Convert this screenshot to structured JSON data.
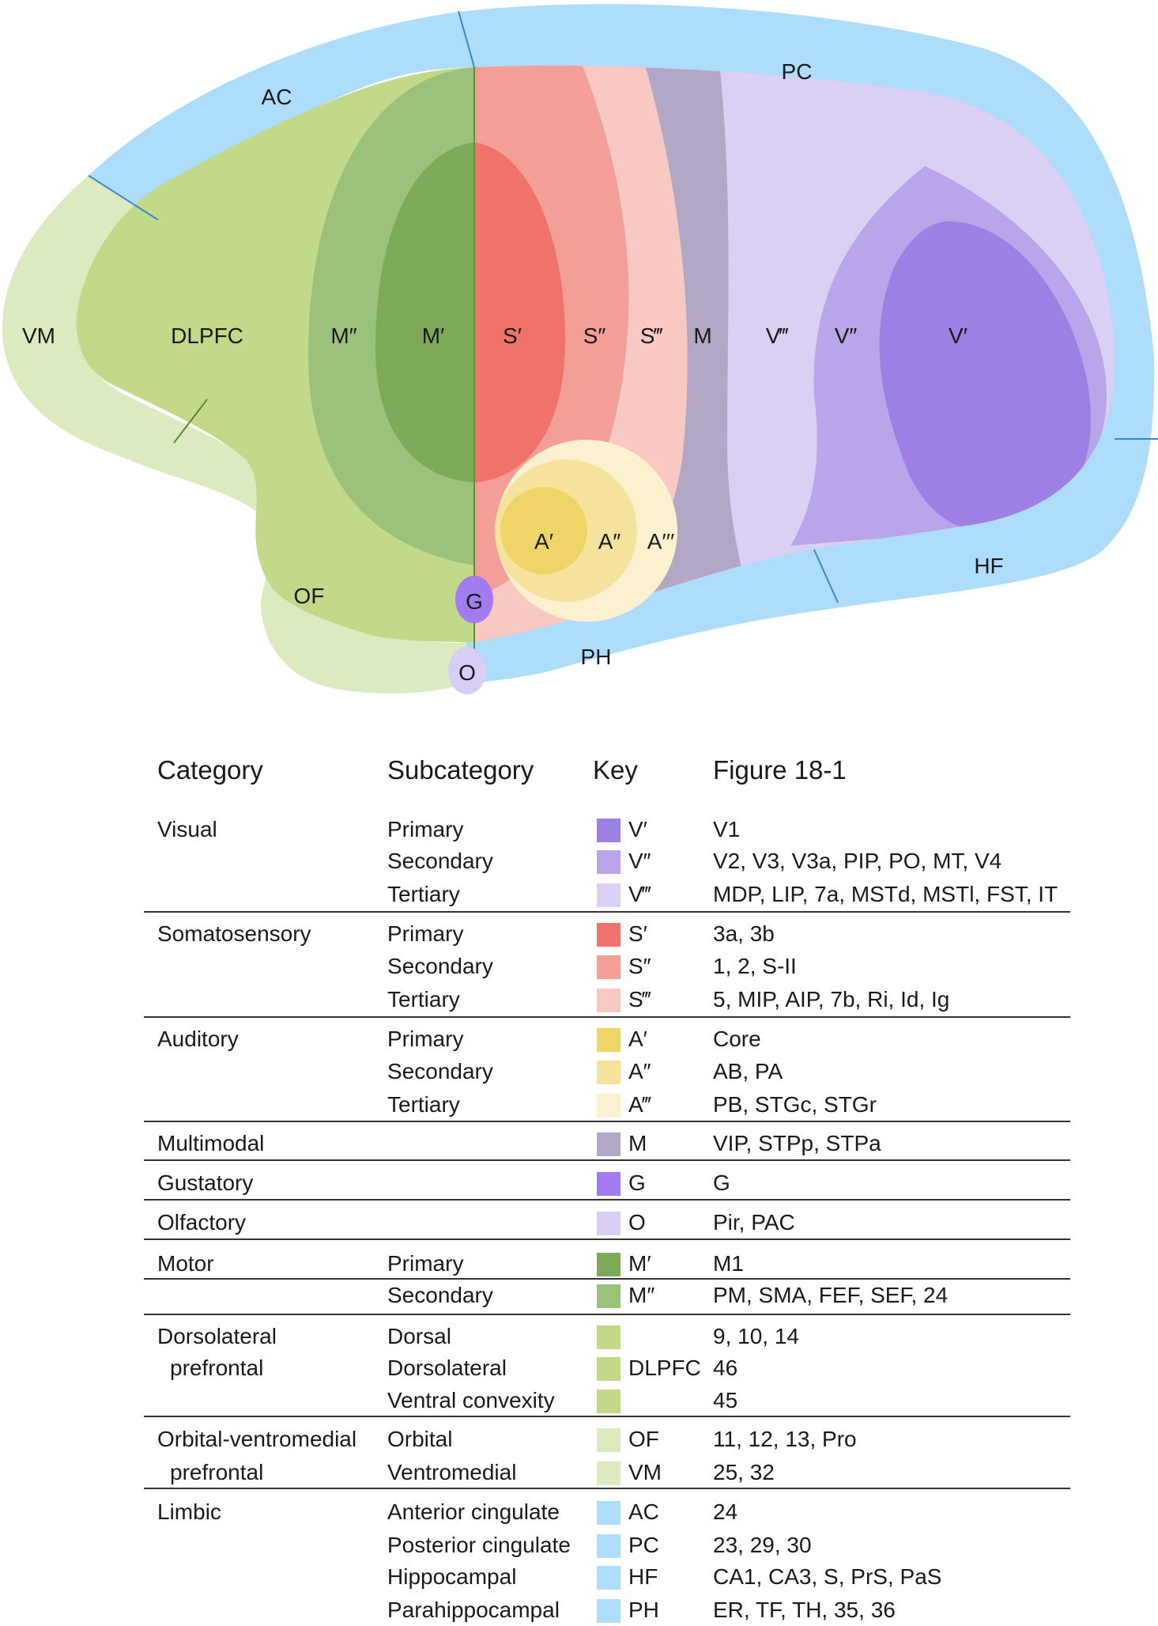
{
  "colors": {
    "V1": "#9c80e4",
    "V2": "#b9a6ea",
    "V3": "#dad0f4",
    "S1": "#ef736a",
    "S2": "#f39e96",
    "S3": "#f8c8c2",
    "A1": "#efd468",
    "A2": "#f5e39d",
    "A3": "#fbf1cf",
    "M": "#b2a8c5",
    "G": "#a07cf0",
    "O": "#d8cdf7",
    "M1": "#7daa58",
    "M2": "#9cc17b",
    "DLPFC": "#c2d98a",
    "OF": "#dceabf",
    "LIMBIC": "#aedcfb"
  },
  "diagram": {
    "labels": {
      "AC": "AC",
      "PC": "PC",
      "VM": "VM",
      "DLPFC": "DLPFC",
      "M2": "M″",
      "M1": "M′",
      "S1": "S′",
      "S2": "S″",
      "S3": "S‴",
      "M": "M",
      "V3": "V‴",
      "V2": "V″",
      "V1": "V′",
      "A1": "A′",
      "A2": "A″",
      "A3": "A′′′",
      "OF": "OF",
      "G": "G",
      "O": "O",
      "PH": "PH",
      "HF": "HF"
    }
  },
  "table": {
    "headers": {
      "category": "Category",
      "subcategory": "Subcategory",
      "key": "Key",
      "figure": "Figure 18-1"
    },
    "rows": [
      {
        "category": "Visual",
        "subcategory": "Primary",
        "color": "V1",
        "key": "V′",
        "figure": "V1"
      },
      {
        "category": "",
        "subcategory": "Secondary",
        "color": "V2",
        "key": "V″",
        "figure": "V2, V3, V3a, PIP, PO, MT, V4"
      },
      {
        "category": "",
        "subcategory": "Tertiary",
        "color": "V3",
        "key": "V‴",
        "figure": "MDP, LIP, 7a, MSTd, MSTl, FST, IT"
      },
      {
        "category": "Somatosensory",
        "subcategory": "Primary",
        "color": "S1",
        "key": "S′",
        "figure": "3a, 3b"
      },
      {
        "category": "",
        "subcategory": "Secondary",
        "color": "S2",
        "key": "S″",
        "figure": "1, 2, S-II"
      },
      {
        "category": "",
        "subcategory": "Tertiary",
        "color": "S3",
        "key": "S‴",
        "figure": "5, MIP, AIP, 7b, Ri, Id, Ig"
      },
      {
        "category": "Auditory",
        "subcategory": "Primary",
        "color": "A1",
        "key": "A′",
        "figure": "Core"
      },
      {
        "category": "",
        "subcategory": "Secondary",
        "color": "A2",
        "key": "A″",
        "figure": "AB, PA"
      },
      {
        "category": "",
        "subcategory": "Tertiary",
        "color": "A3",
        "key": "A‴",
        "figure": "PB, STGc, STGr"
      },
      {
        "category": "Multimodal",
        "subcategory": "",
        "color": "M",
        "key": "M",
        "figure": "VIP, STPp, STPa"
      },
      {
        "category": "Gustatory",
        "subcategory": "",
        "color": "G",
        "key": "G",
        "figure": "G"
      },
      {
        "category": "Olfactory",
        "subcategory": "",
        "color": "O",
        "key": "O",
        "figure": "Pir, PAC"
      },
      {
        "category": "Motor",
        "subcategory": "Primary",
        "color": "M1",
        "key": "M′",
        "figure": "M1"
      },
      {
        "category": "",
        "subcategory": "Secondary",
        "color": "M2",
        "key": "M″",
        "figure": "PM, SMA, FEF, SEF, 24"
      },
      {
        "category": "Dorsolateral",
        "subcategory": "Dorsal",
        "color": "DLPFC",
        "key": "",
        "figure": "9, 10, 14"
      },
      {
        "category": "prefrontal",
        "subcategory": "Dorsolateral",
        "color": "DLPFC",
        "key": "DLPFC",
        "figure": "46"
      },
      {
        "category": "",
        "subcategory": "Ventral convexity",
        "color": "DLPFC",
        "key": "",
        "figure": "45"
      },
      {
        "category": "Orbital-ventromedial",
        "subcategory": "Orbital",
        "color": "OF",
        "key": "OF",
        "figure": "11, 12, 13, Pro"
      },
      {
        "category": "prefrontal",
        "subcategory": "Ventromedial",
        "color": "OF",
        "key": "VM",
        "figure": "25, 32"
      },
      {
        "category": "Limbic",
        "subcategory": "Anterior cingulate",
        "color": "LIMBIC",
        "key": "AC",
        "figure": "24"
      },
      {
        "category": "",
        "subcategory": "Posterior cingulate",
        "color": "LIMBIC",
        "key": "PC",
        "figure": "23, 29, 30"
      },
      {
        "category": "",
        "subcategory": "Hippocampal",
        "color": "LIMBIC",
        "key": "HF",
        "figure": "CA1, CA3, S, PrS, PaS"
      },
      {
        "category": "",
        "subcategory": "Parahippocampal",
        "color": "LIMBIC",
        "key": "PH",
        "figure": "ER, TF, TH, 35, 36"
      }
    ]
  }
}
